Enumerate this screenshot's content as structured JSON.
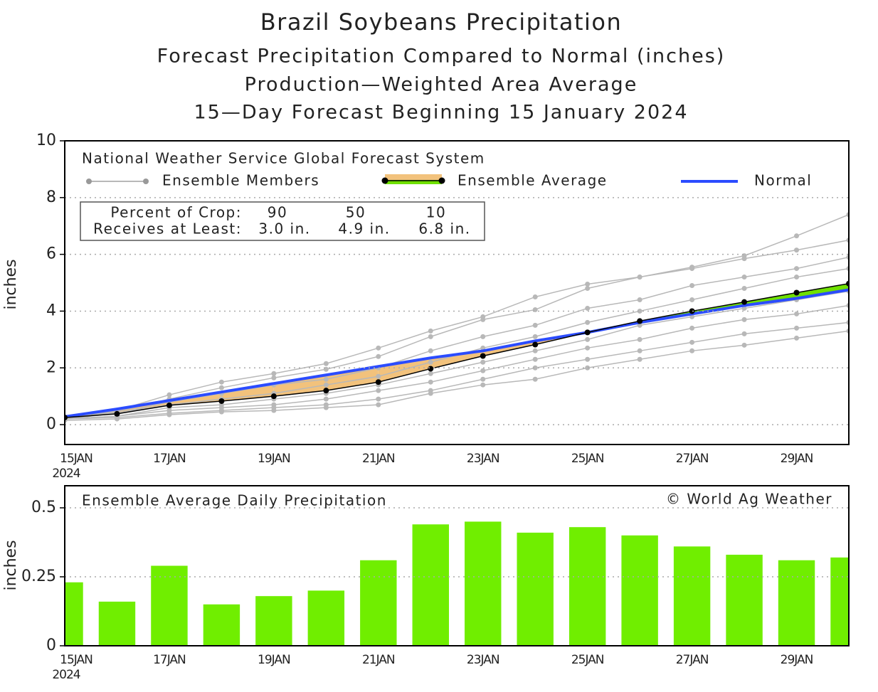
{
  "chart_data": [
    {
      "type": "line",
      "title": "Brazil Soybeans Precipitation",
      "subtitles": [
        "Forecast Precipitation Compared to Normal (inches)",
        "Production—Weighted Area Average",
        "15—Day Forecast Beginning 15 January 2024"
      ],
      "annotation": "National Weather Service Global Forecast System",
      "crop_table": {
        "rows": [
          [
            "Percent of Crop:",
            "90",
            "50",
            "10"
          ],
          [
            "Receives at Least:",
            "3.0 in.",
            "4.9 in.",
            "6.8 in."
          ]
        ]
      },
      "y_label": "inches",
      "categories": [
        "15JAN",
        null,
        "17JAN",
        null,
        "19JAN",
        null,
        "21JAN",
        null,
        "23JAN",
        null,
        "25JAN",
        null,
        "27JAN",
        null,
        "29JAN",
        null
      ],
      "x_sublabel": "2024",
      "ylim": [
        -0.7,
        10
      ],
      "yticks": [
        0,
        2,
        4,
        6,
        8,
        10
      ],
      "grid": true,
      "fill_colors": [
        "#f2c27c",
        "#6fe000"
      ],
      "series": [
        {
          "name": "Ensemble Members",
          "color": "#b8b8b8",
          "members": [
            [
              0.2,
              0.5,
              1.05,
              1.5,
              1.8,
              2.15,
              2.7,
              3.3,
              3.8,
              4.5,
              4.95,
              5.2,
              5.55,
              5.95,
              6.65,
              7.4
            ],
            [
              0.2,
              0.45,
              0.9,
              1.3,
              1.65,
              1.95,
              2.4,
              3.1,
              3.7,
              4.05,
              4.8,
              5.2,
              5.5,
              5.85,
              6.15,
              6.5
            ],
            [
              0.2,
              0.4,
              0.8,
              1.1,
              1.4,
              1.6,
              2.0,
              2.6,
              3.1,
              3.5,
              4.1,
              4.4,
              4.9,
              5.2,
              5.5,
              5.9
            ],
            [
              0.25,
              0.4,
              0.7,
              0.9,
              1.1,
              1.4,
              1.7,
              2.2,
              2.7,
              3.1,
              3.6,
              4.0,
              4.4,
              4.8,
              5.2,
              5.5
            ],
            [
              0.2,
              0.3,
              0.6,
              0.7,
              0.9,
              1.1,
              1.4,
              1.8,
              2.2,
              2.6,
              3.0,
              3.5,
              3.8,
              4.1,
              4.4,
              4.7
            ],
            [
              0.2,
              0.3,
              0.5,
              0.6,
              0.7,
              0.9,
              1.2,
              1.5,
              1.9,
              2.3,
              2.7,
              3.0,
              3.4,
              3.7,
              3.9,
              4.2
            ],
            [
              0.2,
              0.25,
              0.4,
              0.5,
              0.6,
              0.7,
              0.9,
              1.2,
              1.6,
              2.0,
              2.3,
              2.6,
              2.9,
              3.2,
              3.4,
              3.6
            ],
            [
              0.15,
              0.2,
              0.35,
              0.45,
              0.5,
              0.6,
              0.7,
              1.1,
              1.4,
              1.6,
              2.0,
              2.3,
              2.6,
              2.8,
              3.05,
              3.3
            ]
          ]
        },
        {
          "name": "Ensemble Average",
          "color": "#000000",
          "values": [
            0.25,
            0.38,
            0.68,
            0.83,
            1.0,
            1.2,
            1.5,
            1.97,
            2.42,
            2.82,
            3.25,
            3.65,
            4.0,
            4.32,
            4.65,
            4.97
          ]
        },
        {
          "name": "Normal",
          "color": "#2b4cff",
          "values": [
            0.28,
            0.55,
            0.85,
            1.15,
            1.45,
            1.75,
            2.05,
            2.35,
            2.6,
            2.95,
            3.25,
            3.6,
            3.9,
            4.2,
            4.45,
            4.75
          ]
        }
      ]
    },
    {
      "type": "bar",
      "annotation": "Ensemble Average Daily Precipitation",
      "credit": "© World Ag Weather",
      "y_label": "inches",
      "categories": [
        "15JAN",
        null,
        "17JAN",
        null,
        "19JAN",
        null,
        "21JAN",
        null,
        "23JAN",
        null,
        "25JAN",
        null,
        "27JAN",
        null,
        "29JAN",
        null
      ],
      "x_sublabel": "2024",
      "ylim": [
        0,
        0.58
      ],
      "yticks": [
        0,
        0.25,
        0.5
      ],
      "grid": true,
      "color": "#70ee00",
      "values": [
        0.23,
        0.16,
        0.29,
        0.15,
        0.18,
        0.2,
        0.31,
        0.44,
        0.45,
        0.41,
        0.43,
        0.4,
        0.36,
        0.33,
        0.31,
        0.32
      ]
    }
  ]
}
